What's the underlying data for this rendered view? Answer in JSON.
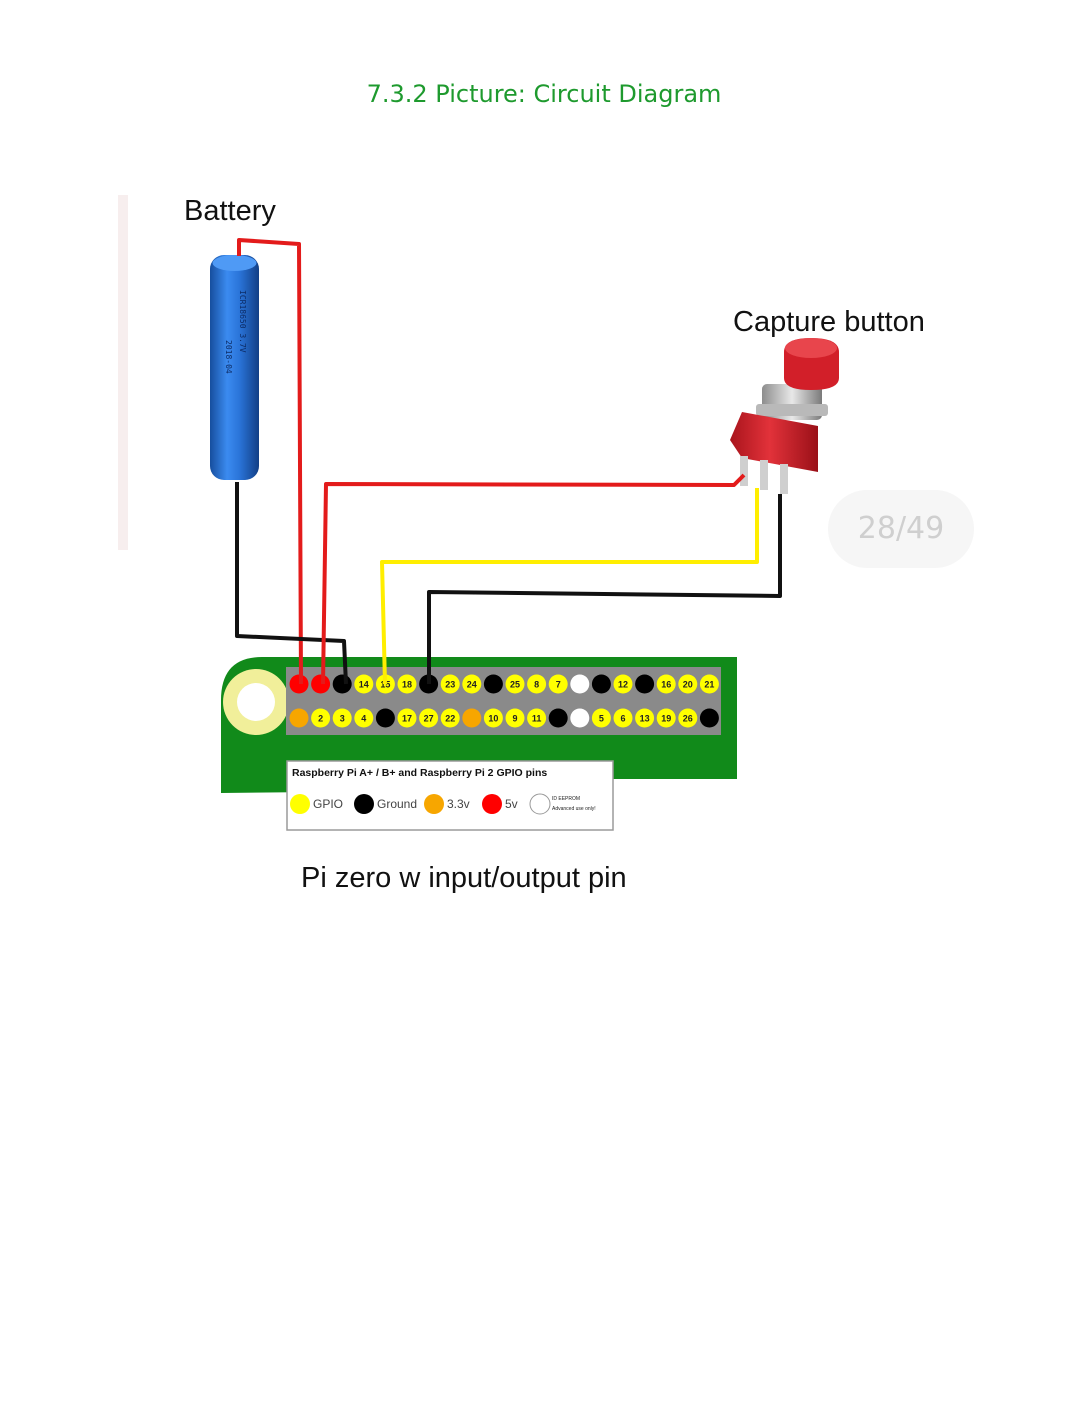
{
  "caption": "7.3.2 Picture: Circuit Diagram",
  "labels": {
    "battery": "Battery",
    "button": "Capture button",
    "board": "Pi zero w input/output pin"
  },
  "page_indicator": "28/49",
  "colors": {
    "caption": "#1e9a2e",
    "board_green": "#118a1a",
    "header_bg": "#8a8a8a",
    "gpio": "#ffff00",
    "ground": "#000000",
    "v33": "#f7a600",
    "v5": "#ff0000",
    "eeprom": "#ffffff",
    "battery": "#1f6fd6",
    "button_red": "#d8202a",
    "wire_red": "#e31b1b",
    "wire_yellow": "#ffee00",
    "wire_black": "#111111"
  },
  "header": {
    "top_row": [
      {
        "type": "v5",
        "label": ""
      },
      {
        "type": "v5",
        "label": ""
      },
      {
        "type": "ground",
        "label": ""
      },
      {
        "type": "gpio",
        "label": "14"
      },
      {
        "type": "gpio",
        "label": "15"
      },
      {
        "type": "gpio",
        "label": "18"
      },
      {
        "type": "ground",
        "label": ""
      },
      {
        "type": "gpio",
        "label": "23"
      },
      {
        "type": "gpio",
        "label": "24"
      },
      {
        "type": "ground",
        "label": ""
      },
      {
        "type": "gpio",
        "label": "25"
      },
      {
        "type": "gpio",
        "label": "8"
      },
      {
        "type": "gpio",
        "label": "7"
      },
      {
        "type": "eeprom",
        "label": ""
      },
      {
        "type": "ground",
        "label": ""
      },
      {
        "type": "gpio",
        "label": "12"
      },
      {
        "type": "ground",
        "label": ""
      },
      {
        "type": "gpio",
        "label": "16"
      },
      {
        "type": "gpio",
        "label": "20"
      },
      {
        "type": "gpio",
        "label": "21"
      }
    ],
    "bottom_row": [
      {
        "type": "v33",
        "label": ""
      },
      {
        "type": "gpio",
        "label": "2"
      },
      {
        "type": "gpio",
        "label": "3"
      },
      {
        "type": "gpio",
        "label": "4"
      },
      {
        "type": "ground",
        "label": ""
      },
      {
        "type": "gpio",
        "label": "17"
      },
      {
        "type": "gpio",
        "label": "27"
      },
      {
        "type": "gpio",
        "label": "22"
      },
      {
        "type": "v33",
        "label": ""
      },
      {
        "type": "gpio",
        "label": "10"
      },
      {
        "type": "gpio",
        "label": "9"
      },
      {
        "type": "gpio",
        "label": "11"
      },
      {
        "type": "ground",
        "label": ""
      },
      {
        "type": "eeprom",
        "label": ""
      },
      {
        "type": "gpio",
        "label": "5"
      },
      {
        "type": "gpio",
        "label": "6"
      },
      {
        "type": "gpio",
        "label": "13"
      },
      {
        "type": "gpio",
        "label": "19"
      },
      {
        "type": "gpio",
        "label": "26"
      },
      {
        "type": "ground",
        "label": ""
      }
    ]
  },
  "legend": {
    "title": "Raspberry Pi A+ / B+ and Raspberry Pi 2 GPIO pins",
    "items": [
      {
        "type": "gpio",
        "label": "GPIO"
      },
      {
        "type": "ground",
        "label": "Ground"
      },
      {
        "type": "v33",
        "label": "3.3v"
      },
      {
        "type": "v5",
        "label": "5v"
      },
      {
        "type": "eeprom",
        "label": "ID EEPROM",
        "note": "Advanced use only!"
      }
    ]
  },
  "battery_print": {
    "line1": "ICR18650 3.7V",
    "line2": "2018-04"
  }
}
